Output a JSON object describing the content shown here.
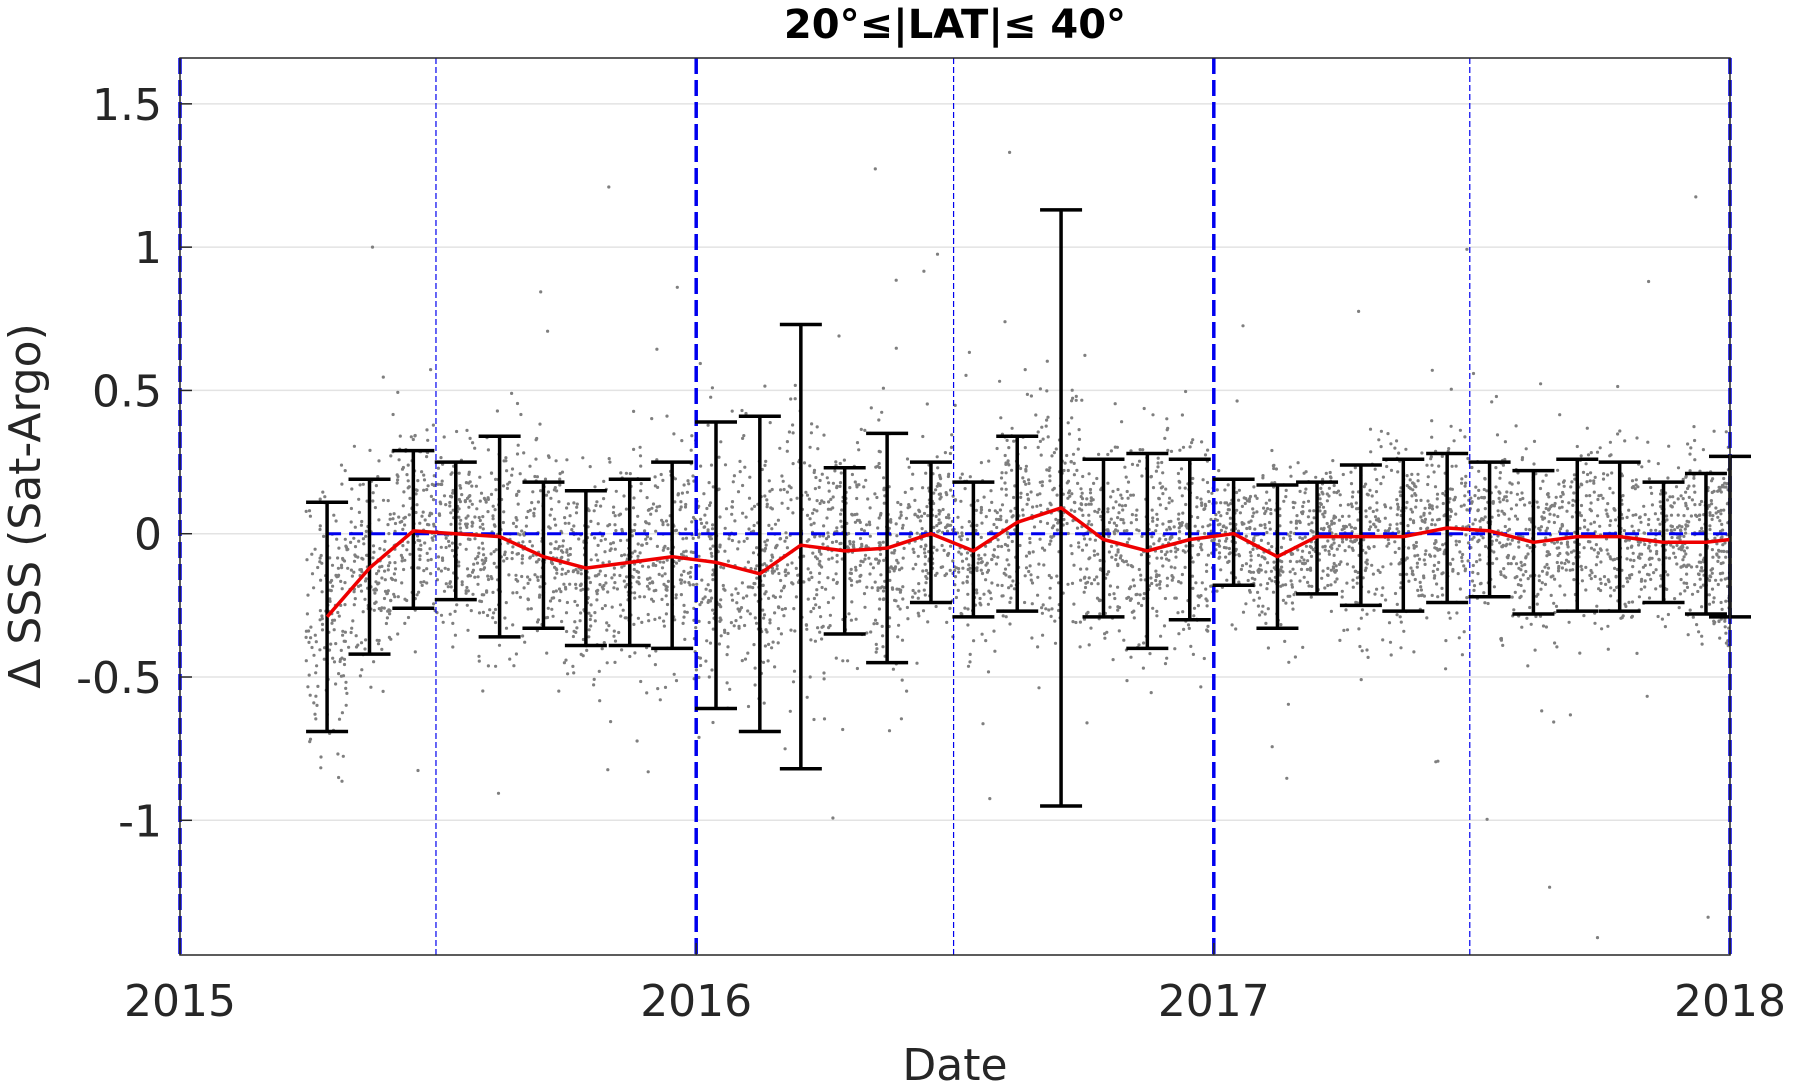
{
  "chart_data": {
    "type": "scatter",
    "title": "20°≤|LAT|≤ 40°",
    "xlabel": "Date",
    "ylabel": "Δ SSS (Sat-Argo)",
    "xlim": [
      "2015-01-01",
      "2018-01-01"
    ],
    "ylim": [
      -1.47,
      1.66
    ],
    "xticks": [
      {
        "date": "2015-01-01",
        "label": "2015"
      },
      {
        "date": "2016-01-01",
        "label": "2016"
      },
      {
        "date": "2017-01-01",
        "label": "2017"
      },
      {
        "date": "2018-01-01",
        "label": "2018"
      }
    ],
    "yticks": [
      {
        "value": 1.5,
        "label": "1.5"
      },
      {
        "value": 1,
        "label": "1"
      },
      {
        "value": 0.5,
        "label": "0.5"
      },
      {
        "value": 0,
        "label": "0"
      },
      {
        "value": -0.5,
        "label": "-0.5"
      },
      {
        "value": -1,
        "label": "-1"
      }
    ],
    "grid": "horizontal",
    "vertical_markers": {
      "year_boundaries": [
        "2015-01-01",
        "2016-01-01",
        "2017-01-01",
        "2018-01-01"
      ],
      "mid_year": [
        "2015-07-01",
        "2016-07-01",
        "2017-07-01"
      ],
      "color": "#0000ee"
    },
    "zero_line": {
      "y": 0,
      "style": "dashed",
      "color": "#0000ee"
    },
    "colors": {
      "scatter": "#7f7f7f",
      "mean": "#ee0000",
      "error_bars": "#000000"
    },
    "monthly_stats": [
      {
        "date": "2015-04-15",
        "mean": -0.29,
        "low": -0.69,
        "high": 0.11
      },
      {
        "date": "2015-05-15",
        "mean": -0.12,
        "low": -0.42,
        "high": 0.19
      },
      {
        "date": "2015-06-15",
        "mean": 0.01,
        "low": -0.26,
        "high": 0.29
      },
      {
        "date": "2015-07-15",
        "mean": 0.0,
        "low": -0.23,
        "high": 0.25
      },
      {
        "date": "2015-08-15",
        "mean": -0.01,
        "low": -0.36,
        "high": 0.34
      },
      {
        "date": "2015-09-15",
        "mean": -0.08,
        "low": -0.33,
        "high": 0.18
      },
      {
        "date": "2015-10-15",
        "mean": -0.12,
        "low": -0.39,
        "high": 0.15
      },
      {
        "date": "2015-11-15",
        "mean": -0.1,
        "low": -0.39,
        "high": 0.19
      },
      {
        "date": "2015-12-15",
        "mean": -0.08,
        "low": -0.4,
        "high": 0.25
      },
      {
        "date": "2016-01-15",
        "mean": -0.1,
        "low": -0.61,
        "high": 0.39
      },
      {
        "date": "2016-02-15",
        "mean": -0.14,
        "low": -0.69,
        "high": 0.41
      },
      {
        "date": "2016-03-15",
        "mean": -0.04,
        "low": -0.82,
        "high": 0.73
      },
      {
        "date": "2016-04-15",
        "mean": -0.06,
        "low": -0.35,
        "high": 0.23
      },
      {
        "date": "2016-05-15",
        "mean": -0.05,
        "low": -0.45,
        "high": 0.35
      },
      {
        "date": "2016-06-15",
        "mean": 0.0,
        "low": -0.24,
        "high": 0.25
      },
      {
        "date": "2016-07-15",
        "mean": -0.06,
        "low": -0.29,
        "high": 0.18
      },
      {
        "date": "2016-08-15",
        "mean": 0.04,
        "low": -0.27,
        "high": 0.34
      },
      {
        "date": "2016-09-15",
        "mean": 0.09,
        "low": -0.95,
        "high": 1.13
      },
      {
        "date": "2016-10-15",
        "mean": -0.02,
        "low": -0.29,
        "high": 0.26
      },
      {
        "date": "2016-11-15",
        "mean": -0.06,
        "low": -0.4,
        "high": 0.28
      },
      {
        "date": "2016-12-15",
        "mean": -0.02,
        "low": -0.3,
        "high": 0.26
      },
      {
        "date": "2017-01-15",
        "mean": 0.0,
        "low": -0.18,
        "high": 0.19
      },
      {
        "date": "2017-02-15",
        "mean": -0.08,
        "low": -0.33,
        "high": 0.17
      },
      {
        "date": "2017-03-15",
        "mean": -0.01,
        "low": -0.21,
        "high": 0.18
      },
      {
        "date": "2017-04-15",
        "mean": -0.01,
        "low": -0.25,
        "high": 0.24
      },
      {
        "date": "2017-05-15",
        "mean": -0.01,
        "low": -0.27,
        "high": 0.26
      },
      {
        "date": "2017-06-15",
        "mean": 0.02,
        "low": -0.24,
        "high": 0.28
      },
      {
        "date": "2017-07-15",
        "mean": 0.01,
        "low": -0.22,
        "high": 0.25
      },
      {
        "date": "2017-08-15",
        "mean": -0.03,
        "low": -0.28,
        "high": 0.22
      },
      {
        "date": "2017-09-15",
        "mean": -0.01,
        "low": -0.27,
        "high": 0.26
      },
      {
        "date": "2017-10-15",
        "mean": -0.01,
        "low": -0.27,
        "high": 0.25
      },
      {
        "date": "2017-11-15",
        "mean": -0.03,
        "low": -0.24,
        "high": 0.18
      },
      {
        "date": "2017-12-15",
        "mean": -0.03,
        "low": -0.28,
        "high": 0.21
      },
      {
        "date": "2018-01-01",
        "mean": -0.02,
        "low": -0.29,
        "high": 0.27
      }
    ]
  }
}
